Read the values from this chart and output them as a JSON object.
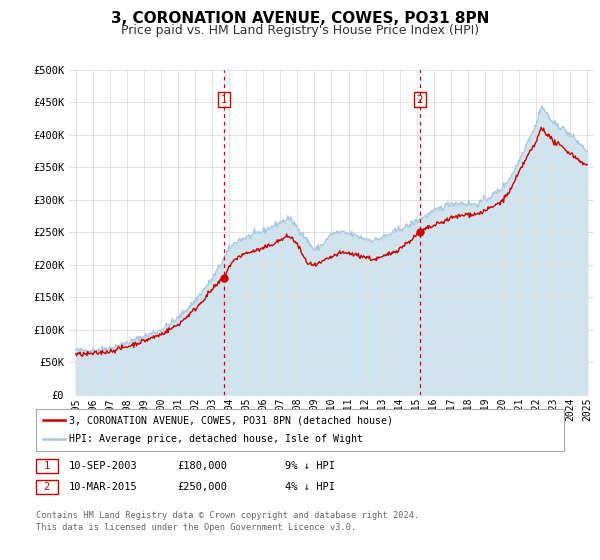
{
  "title": "3, CORONATION AVENUE, COWES, PO31 8PN",
  "subtitle": "Price paid vs. HM Land Registry's House Price Index (HPI)",
  "ylim": [
    0,
    500000
  ],
  "yticks": [
    0,
    50000,
    100000,
    150000,
    200000,
    250000,
    300000,
    350000,
    400000,
    450000,
    500000
  ],
  "ytick_labels": [
    "£0",
    "£50K",
    "£100K",
    "£150K",
    "£200K",
    "£250K",
    "£300K",
    "£350K",
    "£400K",
    "£450K",
    "£500K"
  ],
  "xlim_start": 1994.6,
  "xlim_end": 2025.4,
  "xticks": [
    1995,
    1996,
    1997,
    1998,
    1999,
    2000,
    2001,
    2002,
    2003,
    2004,
    2005,
    2006,
    2007,
    2008,
    2009,
    2010,
    2011,
    2012,
    2013,
    2014,
    2015,
    2016,
    2017,
    2018,
    2019,
    2020,
    2021,
    2022,
    2023,
    2024,
    2025
  ],
  "hpi_color": "#aac8e0",
  "hpi_fill_color": "#d0e4f0",
  "sold_color": "#cc0000",
  "vline_color": "#cc0000",
  "bg_color": "#ffffff",
  "grid_color": "#dddddd",
  "marker1_date": 2003.69,
  "marker1_price": 180000,
  "marker2_date": 2015.19,
  "marker2_price": 250000,
  "legend_label_sold": "3, CORONATION AVENUE, COWES, PO31 8PN (detached house)",
  "legend_label_hpi": "HPI: Average price, detached house, Isle of Wight",
  "table_row1": [
    "1",
    "10-SEP-2003",
    "£180,000",
    "9% ↓ HPI"
  ],
  "table_row2": [
    "2",
    "10-MAR-2015",
    "£250,000",
    "4% ↓ HPI"
  ],
  "footer": "Contains HM Land Registry data © Crown copyright and database right 2024.\nThis data is licensed under the Open Government Licence v3.0.",
  "title_fontsize": 11,
  "subtitle_fontsize": 9
}
